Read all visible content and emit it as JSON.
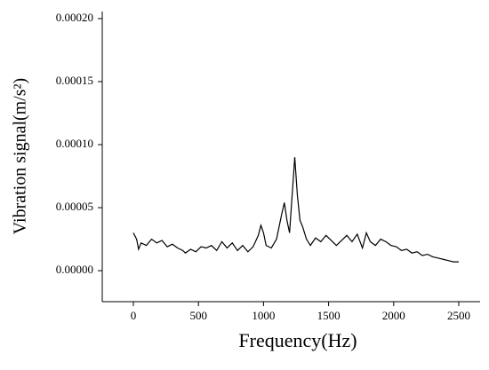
{
  "chart_data": {
    "type": "line",
    "xlabel": "Frequency(Hz)",
    "ylabel": "Vibration signal(m/s²)",
    "x": [
      0,
      25,
      40,
      60,
      100,
      140,
      180,
      220,
      260,
      300,
      340,
      380,
      400,
      440,
      480,
      520,
      560,
      600,
      640,
      680,
      720,
      760,
      800,
      840,
      880,
      920,
      960,
      980,
      1000,
      1020,
      1060,
      1100,
      1140,
      1160,
      1180,
      1200,
      1220,
      1240,
      1260,
      1280,
      1300,
      1330,
      1360,
      1400,
      1440,
      1480,
      1520,
      1560,
      1600,
      1640,
      1680,
      1720,
      1760,
      1790,
      1820,
      1860,
      1900,
      1940,
      1980,
      2020,
      2060,
      2100,
      2140,
      2180,
      2220,
      2260,
      2300,
      2340,
      2380,
      2420,
      2460,
      2500
    ],
    "series": [
      {
        "name": "signal",
        "color": "#000000",
        "values": [
          3e-05,
          2.5e-05,
          1.7e-05,
          2.2e-05,
          2e-05,
          2.5e-05,
          2.2e-05,
          2.4e-05,
          1.9e-05,
          2.1e-05,
          1.8e-05,
          1.6e-05,
          1.4e-05,
          1.7e-05,
          1.5e-05,
          1.9e-05,
          1.8e-05,
          2e-05,
          1.6e-05,
          2.3e-05,
          1.8e-05,
          2.2e-05,
          1.6e-05,
          2e-05,
          1.5e-05,
          1.9e-05,
          2.8e-05,
          3.6e-05,
          3e-05,
          2e-05,
          1.8e-05,
          2.5e-05,
          4.5e-05,
          5.4e-05,
          4e-05,
          3e-05,
          6e-05,
          9e-05,
          6e-05,
          4e-05,
          3.5e-05,
          2.5e-05,
          2e-05,
          2.6e-05,
          2.3e-05,
          2.8e-05,
          2.4e-05,
          2e-05,
          2.4e-05,
          2.8e-05,
          2.3e-05,
          2.9e-05,
          1.8e-05,
          3e-05,
          2.3e-05,
          2e-05,
          2.5e-05,
          2.3e-05,
          2e-05,
          1.9e-05,
          1.6e-05,
          1.7e-05,
          1.4e-05,
          1.5e-05,
          1.2e-05,
          1.3e-05,
          1.1e-05,
          1e-05,
          9e-06,
          8e-06,
          7e-06,
          7e-06
        ]
      }
    ],
    "xlim": [
      -239,
      2664
    ],
    "ylim": [
      -2.46e-05,
      0.0002056
    ],
    "xticks": [
      0,
      500,
      1000,
      1500,
      2000,
      2500
    ],
    "yticks": [
      {
        "value": 0,
        "label": "0.00000"
      },
      {
        "value": 5e-05,
        "label": "0.00005"
      },
      {
        "value": 0.0001,
        "label": "0.00010"
      },
      {
        "value": 0.00015,
        "label": "0.00015"
      },
      {
        "value": 0.0002,
        "label": "0.00020"
      }
    ]
  }
}
